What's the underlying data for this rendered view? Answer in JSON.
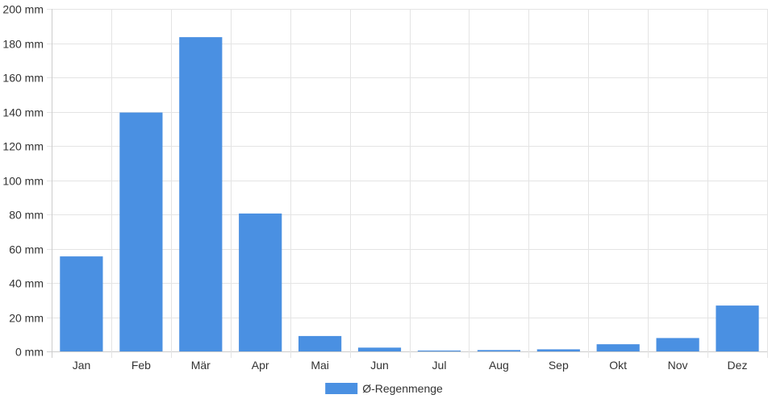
{
  "chart_data": {
    "type": "bar",
    "categories": [
      "Jan",
      "Feb",
      "Mär",
      "Apr",
      "Mai",
      "Jun",
      "Jul",
      "Aug",
      "Sep",
      "Okt",
      "Nov",
      "Dez"
    ],
    "series": [
      {
        "name": "Ø-Regenmenge",
        "values": [
          55.5,
          139.5,
          183.5,
          80.5,
          9,
          2.2,
          0.5,
          0.8,
          1.2,
          4.2,
          7.8,
          26.8
        ],
        "color": "#4a90e2"
      }
    ],
    "y_ticks": [
      "0 mm",
      "20 mm",
      "40 mm",
      "60 mm",
      "80 mm",
      "100 mm",
      "120 mm",
      "140 mm",
      "160 mm",
      "180 mm",
      "200 mm"
    ],
    "ylim": [
      0,
      200
    ],
    "y_step": 20,
    "grid": true,
    "legend_position": "bottom-center",
    "grid_color": "#e4e4e4",
    "axis_color": "#cccccc",
    "text_color": "#333333"
  }
}
